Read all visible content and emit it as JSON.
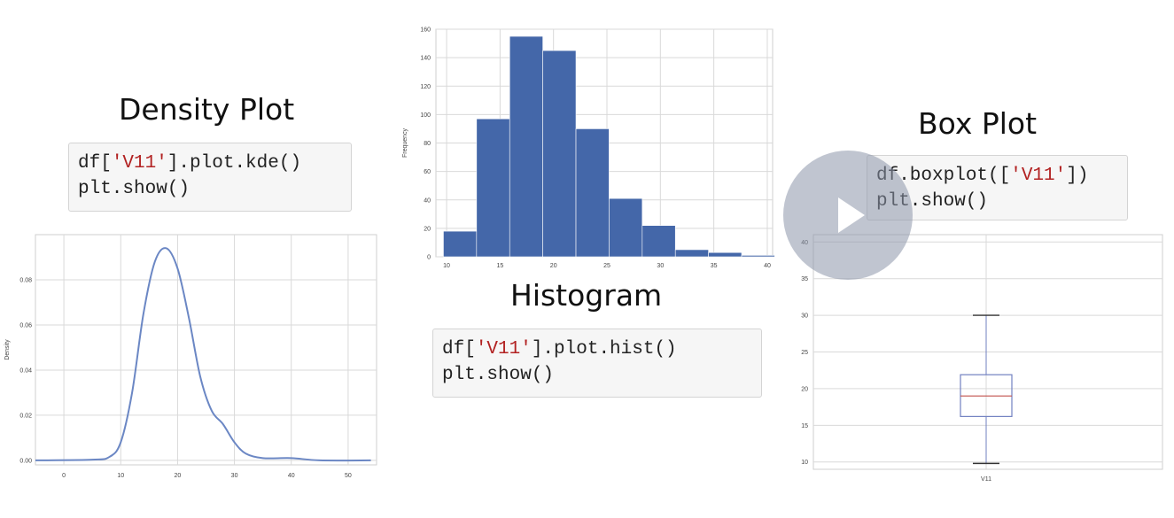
{
  "titles": {
    "density": "Density Plot",
    "histogram": "Histogram",
    "box": "Box Plot"
  },
  "code": {
    "density": {
      "l1_pre": "df[",
      "l1_str": "'V11'",
      "l1_post": "].plot.kde()",
      "l2": "plt.show()"
    },
    "histogram": {
      "l1_pre": "df[",
      "l1_str": "'V11'",
      "l1_post": "].plot.hist()",
      "l2": "plt.show()"
    },
    "box": {
      "l1_pre": "df.boxplot([",
      "l1_str": "'V11'",
      "l1_post": "])",
      "l2": "plt.show()"
    }
  },
  "colors": {
    "kde_line": "#6b87c4",
    "bar_fill": "#4467a9",
    "box_line": "#7180c0",
    "median_line": "#c0504d",
    "grid": "#d9d9d9",
    "string_literal": "#b22222"
  },
  "chart_data": [
    {
      "type": "line",
      "title": "",
      "xlabel": "",
      "ylabel": "Density",
      "xlim": [
        -5,
        55
      ],
      "ylim": [
        -0.002,
        0.1
      ],
      "xticks": [
        0,
        10,
        20,
        30,
        40,
        50
      ],
      "yticks": [
        0.0,
        0.02,
        0.04,
        0.06,
        0.08
      ],
      "ytick_labels": [
        "0.00",
        "0.02",
        "0.04",
        "0.06",
        "0.08"
      ],
      "grid": true,
      "x": [
        -5,
        5,
        8,
        10,
        12,
        14,
        16,
        18,
        20,
        22,
        24,
        26,
        28,
        30,
        32,
        35,
        40,
        45,
        54
      ],
      "y": [
        0.0,
        0.0003,
        0.0015,
        0.008,
        0.03,
        0.065,
        0.088,
        0.094,
        0.085,
        0.063,
        0.037,
        0.022,
        0.016,
        0.008,
        0.003,
        0.001,
        0.001,
        0.0,
        0.0
      ]
    },
    {
      "type": "bar",
      "title": "",
      "xlabel": "",
      "ylabel": "Frequency",
      "xlim": [
        9,
        40.5
      ],
      "ylim": [
        0,
        160
      ],
      "xticks": [
        10,
        15,
        20,
        25,
        30,
        35,
        40
      ],
      "yticks": [
        0,
        20,
        40,
        60,
        80,
        100,
        120,
        140,
        160
      ],
      "grid": true,
      "bin_edges": [
        9.7,
        12.8,
        15.9,
        19.0,
        22.1,
        25.2,
        28.3,
        31.4,
        34.5,
        37.6,
        40.7
      ],
      "values": [
        18,
        97,
        155,
        145,
        90,
        41,
        22,
        5,
        3,
        1
      ]
    },
    {
      "type": "box",
      "title": "",
      "categories": [
        "V11"
      ],
      "ylim": [
        9,
        41
      ],
      "yticks": [
        10,
        15,
        20,
        25,
        30,
        35,
        40
      ],
      "grid": true,
      "whisker_low": 9.8,
      "q1": 16.2,
      "median": 19.0,
      "q3": 21.9,
      "whisker_high": 30.0
    }
  ]
}
